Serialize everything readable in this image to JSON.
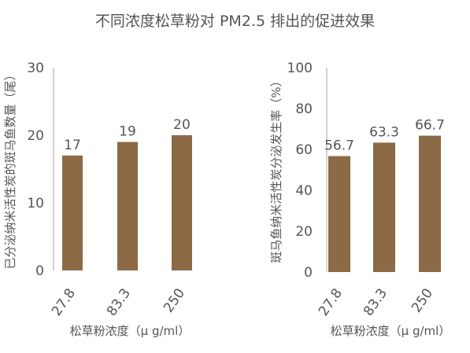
{
  "title": "不同浓度松草粉对 PM2.5 排出的促进效果",
  "colors": {
    "bar": "#8b6a45",
    "axis": "#c8c4bc",
    "text": "#555555"
  },
  "chart_data": [
    {
      "type": "bar",
      "categories": [
        "27.8",
        "83.3",
        "250"
      ],
      "values": [
        17,
        19,
        20
      ],
      "data_labels": [
        "17",
        "19",
        "20"
      ],
      "ylim": [
        0,
        30
      ],
      "yticks": [
        "0",
        "10",
        "20",
        "30"
      ],
      "xlabel": "松草粉浓度（μ g/ml）",
      "ylabel": "已分泌纳米活性炭的斑马鱼数量（尾）"
    },
    {
      "type": "bar",
      "categories": [
        "27.8",
        "83.3",
        "250"
      ],
      "values": [
        56.7,
        63.3,
        66.7
      ],
      "data_labels": [
        "56.7",
        "63.3",
        "66.7"
      ],
      "ylim": [
        0,
        100
      ],
      "yticks": [
        "0",
        "20",
        "40",
        "60",
        "80",
        "100"
      ],
      "xlabel": "松草粉浓度（μ g/ml）",
      "ylabel": "斑马鱼纳米活性炭分泌发生率（%）"
    }
  ]
}
